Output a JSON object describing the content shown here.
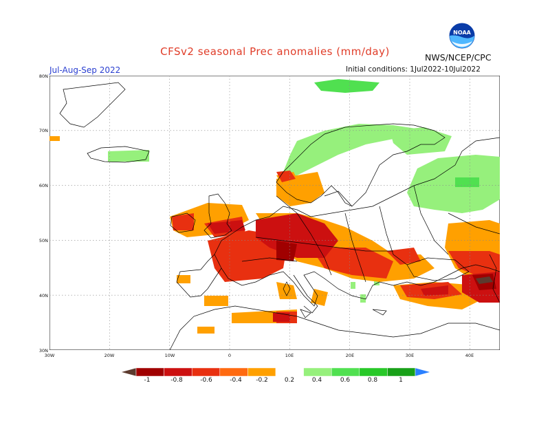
{
  "header": {
    "title": "CFSv2 seasonal Prec anomalies (mm/day)",
    "agency": "NWS/NCEP/CPC",
    "season": "Jul-Aug-Sep 2022",
    "initial_conditions": "Initial conditions: 1Jul2022-10Jul2022",
    "logo_text": "NOAA"
  },
  "map": {
    "lat_labels": [
      "80N",
      "70N",
      "60N",
      "50N",
      "40N",
      "30N"
    ],
    "lon_labels": [
      "30W",
      "20W",
      "10W",
      "0",
      "10E",
      "20E",
      "30E",
      "40E"
    ],
    "lat_range": [
      30,
      80
    ],
    "lon_range": [
      -30,
      45
    ],
    "grid": true
  },
  "colorbar": {
    "labels": [
      "-1",
      "-0.8",
      "-0.6",
      "-0.4",
      "-0.2",
      "0.2",
      "0.4",
      "0.6",
      "0.8",
      "1"
    ],
    "colors": [
      "#5c3a2e",
      "#a00000",
      "#cc1010",
      "#e83010",
      "#ff6a10",
      "#ffa000",
      "#ffffff",
      "#96f07c",
      "#50e050",
      "#28c828",
      "#18a018",
      "#2a80ff"
    ]
  }
}
